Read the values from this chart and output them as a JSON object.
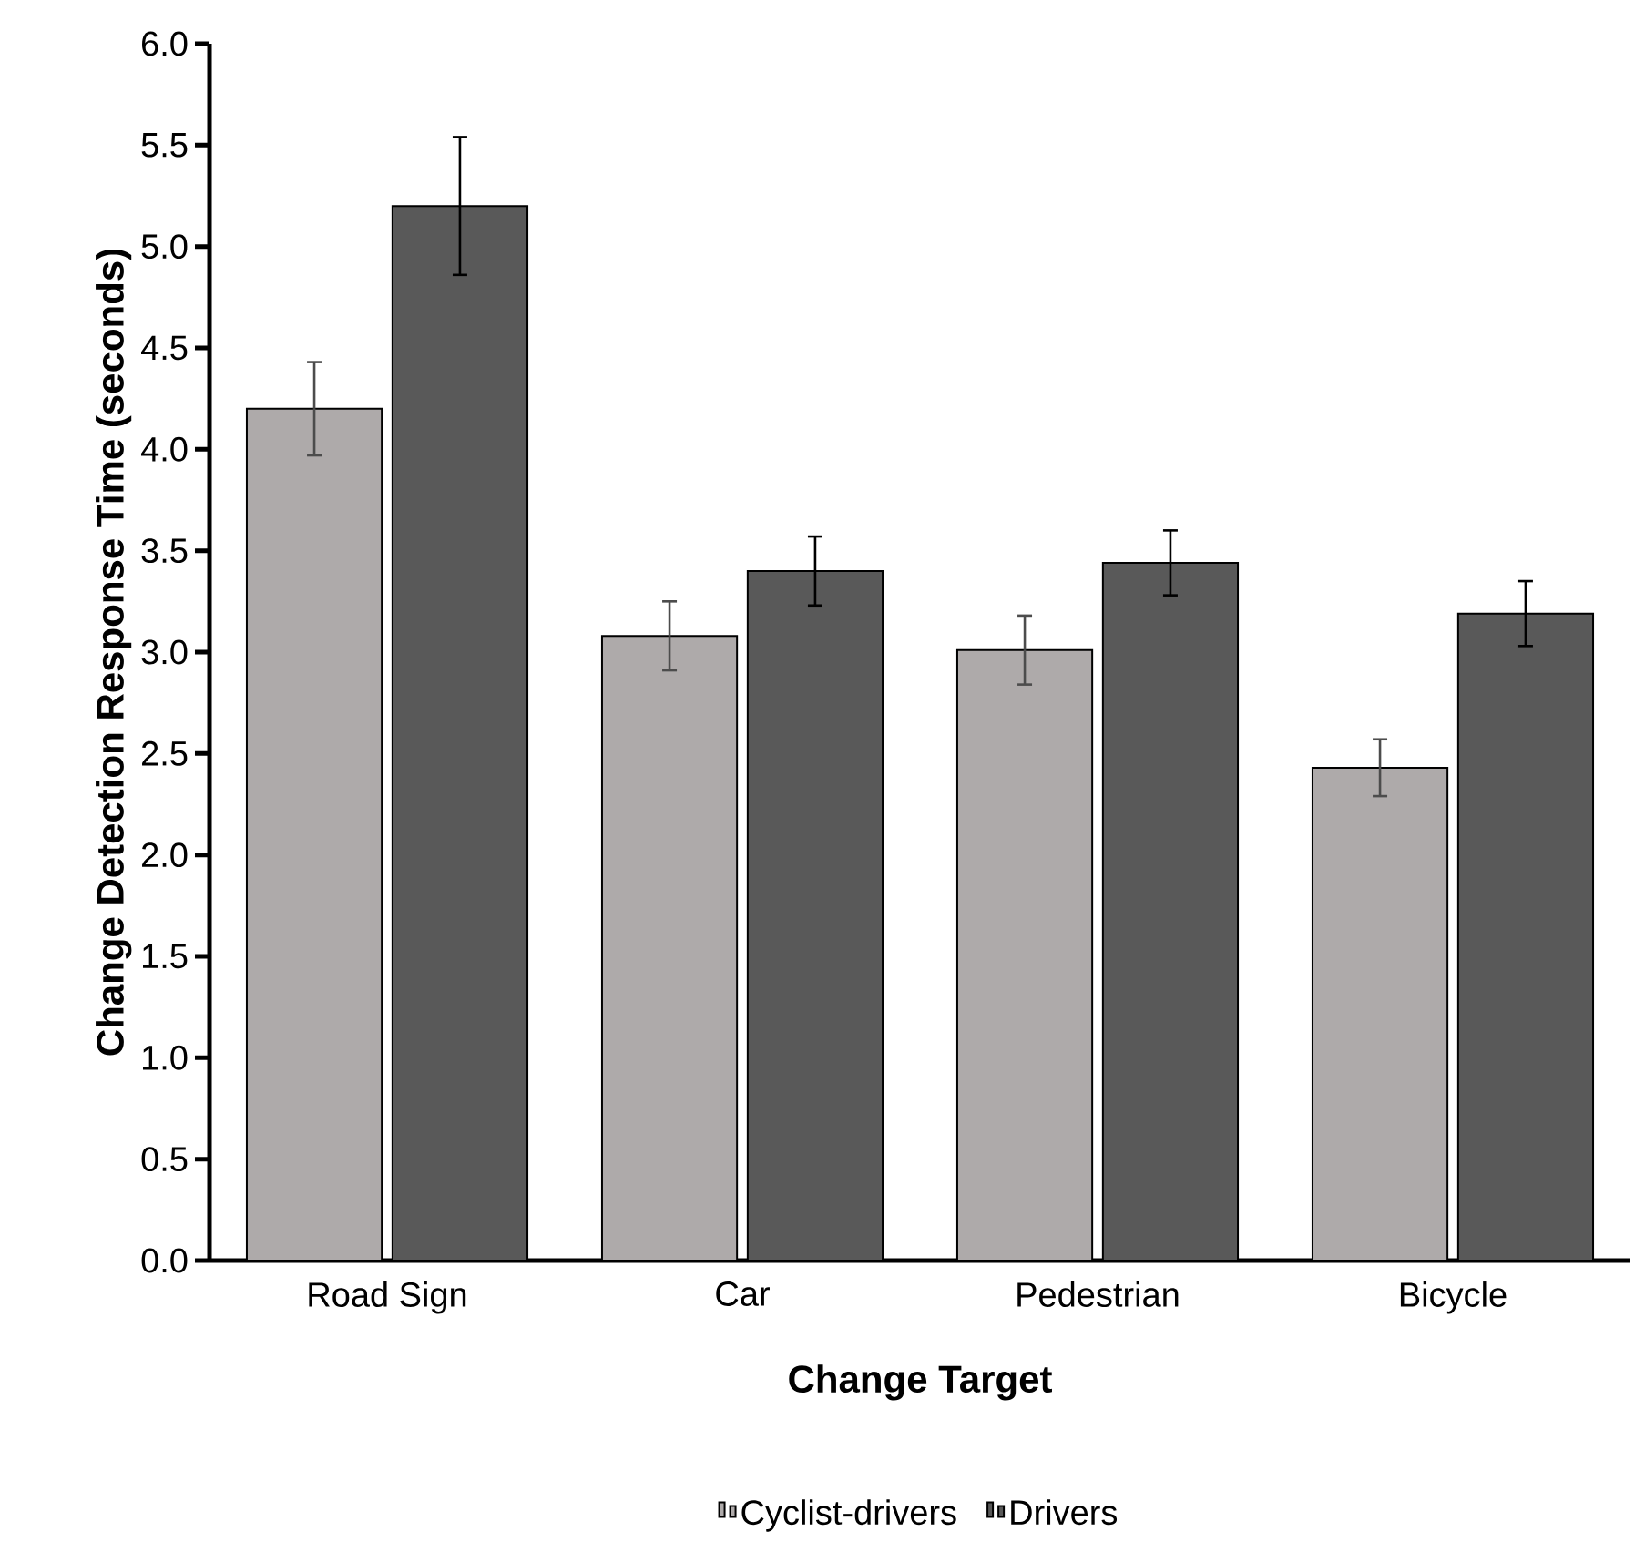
{
  "chart_data": {
    "type": "bar",
    "xlabel": "Change Target",
    "ylabel": "Change Detection Response Time (seconds)",
    "categories": [
      "Road Sign",
      "Car",
      "Pedestrian",
      "Bicycle"
    ],
    "series": [
      {
        "name": "Cyclist-drivers",
        "color": "#aeaaaa",
        "values": [
          4.2,
          3.08,
          3.01,
          2.43
        ],
        "errors": [
          0.23,
          0.17,
          0.17,
          0.14
        ]
      },
      {
        "name": "Drivers",
        "color": "#595959",
        "values": [
          5.2,
          3.4,
          3.44,
          3.19
        ],
        "errors": [
          0.34,
          0.17,
          0.16,
          0.16
        ]
      }
    ],
    "ylim": [
      0,
      6
    ],
    "yticks": [
      {
        "value": 0,
        "label": "0.0"
      },
      {
        "value": 0.5,
        "label": "0.5"
      },
      {
        "value": 1,
        "label": "1.0"
      },
      {
        "value": 1.5,
        "label": "1.5"
      },
      {
        "value": 2,
        "label": "2.0"
      },
      {
        "value": 2.5,
        "label": "2.5"
      },
      {
        "value": 3,
        "label": "3.0"
      },
      {
        "value": 3.5,
        "label": "3.5"
      },
      {
        "value": 4,
        "label": "4.0"
      },
      {
        "value": 4.5,
        "label": "4.5"
      },
      {
        "value": 5,
        "label": "5.0"
      },
      {
        "value": 5.5,
        "label": "5.5"
      },
      {
        "value": 6,
        "label": "6.0"
      }
    ],
    "grid": false,
    "legend": "bottom"
  }
}
